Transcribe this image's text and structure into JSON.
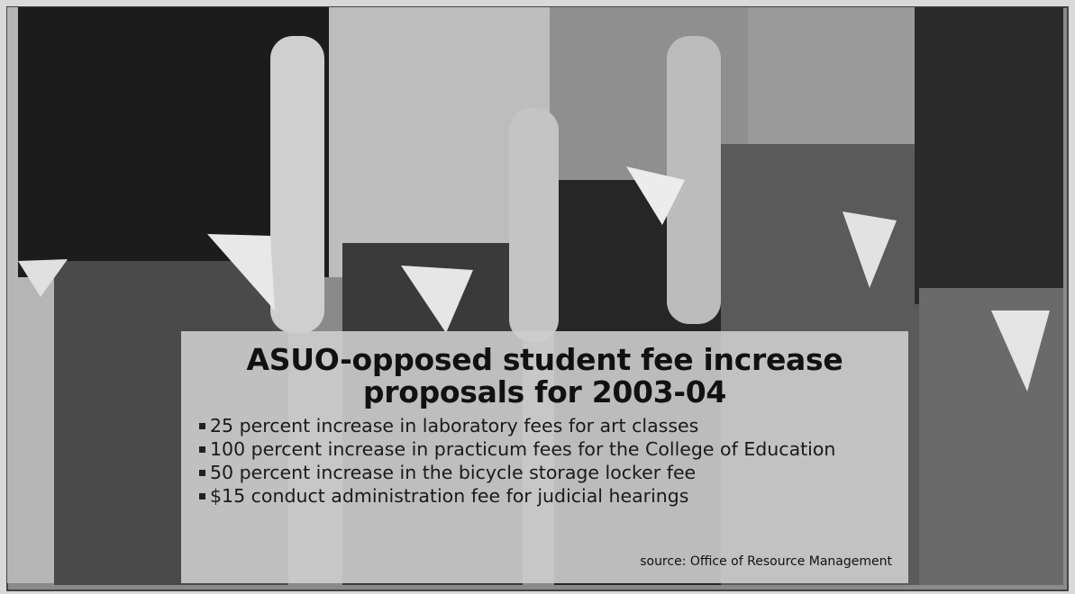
{
  "heading": [
    "ASUO-opposed student fee increase",
    "proposals for 2003-04"
  ],
  "bullets": [
    "25 percent increase in laboratory fees for art classes",
    "100 percent increase in practicum fees for the College of Education",
    "50 percent increase in the bicycle storage locker fee",
    "$15 conduct administration fee for judicial hearings"
  ],
  "source": "source: Office of Resource Management"
}
